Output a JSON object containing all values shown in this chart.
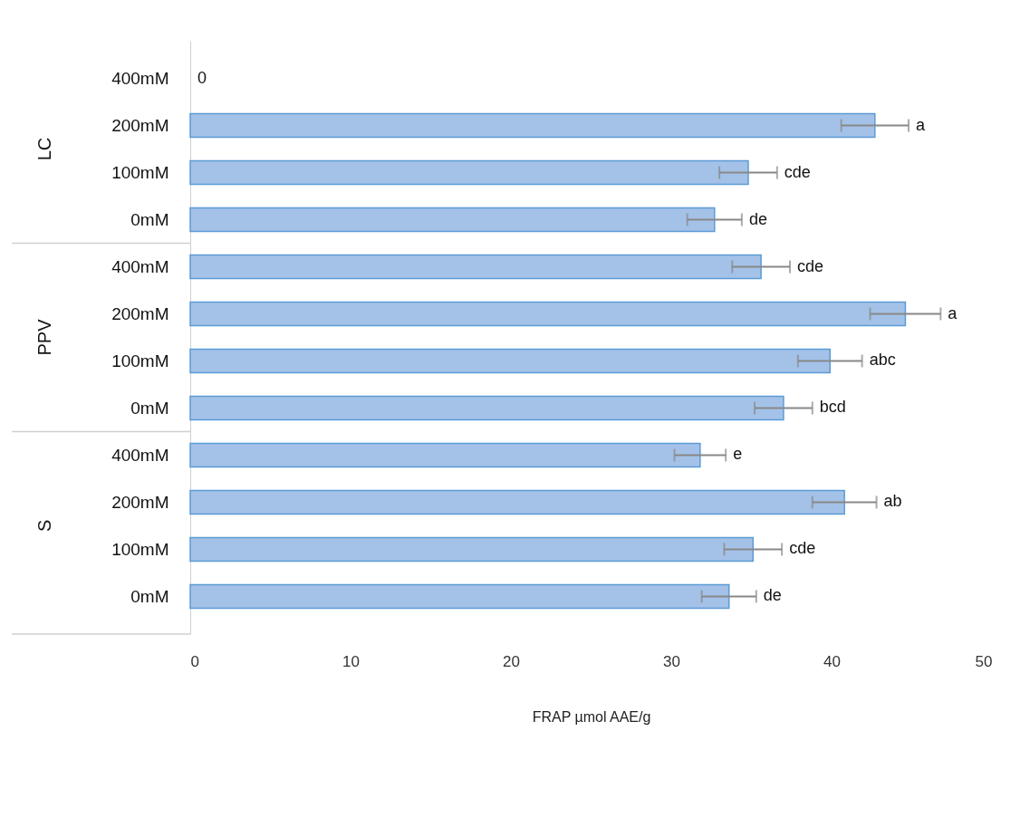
{
  "chart_data": {
    "type": "bar",
    "orientation": "horizontal",
    "xlabel": "FRAP µmol AAE/g",
    "categories": [
      "400mM",
      "200mM",
      "100mM",
      "0mM",
      "400mM",
      "200mM",
      "100mM",
      "0mM",
      "400mM",
      "200mM",
      "100mM",
      "0mM"
    ],
    "values": [
      0,
      42.7,
      34.8,
      32.7,
      35.6,
      44.6,
      39.9,
      37.0,
      31.8,
      40.8,
      35.1,
      33.6
    ],
    "errors": [
      null,
      2.1,
      1.8,
      1.7,
      1.8,
      2.2,
      2.0,
      1.8,
      1.6,
      2.0,
      1.8,
      1.7
    ],
    "value_labels": [
      "0",
      "a",
      "cde",
      "de",
      "cde",
      "a",
      "abc",
      "bcd",
      "e",
      "ab",
      "cde",
      "de"
    ],
    "color": "#a4c2e8",
    "annotations": [
      "LC",
      "PPV",
      "S"
    ],
    "xlim": [
      0,
      50
    ],
    "xticks": [
      0,
      10,
      20,
      30,
      40,
      50
    ],
    "grid": false
  }
}
